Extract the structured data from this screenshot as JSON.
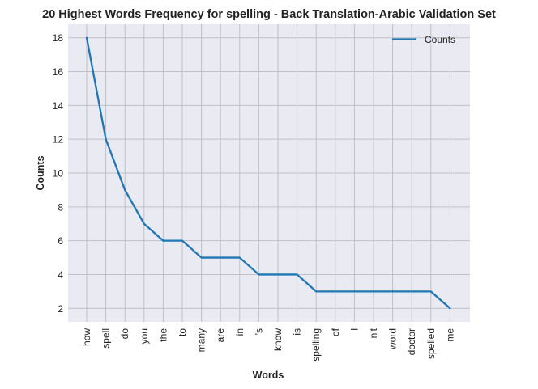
{
  "chart_data": {
    "type": "line",
    "title": "20 Highest Words Frequency for spelling - Back Translation-Arabic Validation Set",
    "xlabel": "Words",
    "ylabel": "Counts",
    "categories": [
      "how",
      "spell",
      "do",
      "you",
      "the",
      "to",
      "many",
      "are",
      "in",
      "'s",
      "know",
      "is",
      "spelling",
      "of",
      "i",
      "n't",
      "word",
      "doctor",
      "spelled",
      "me"
    ],
    "series": [
      {
        "name": "Counts",
        "values": [
          18,
          12,
          9,
          7,
          6,
          6,
          5,
          5,
          5,
          4,
          4,
          4,
          3,
          3,
          3,
          3,
          3,
          3,
          3,
          2
        ]
      }
    ],
    "yticks": [
      2,
      4,
      6,
      8,
      10,
      12,
      14,
      16,
      18
    ],
    "ylim": [
      1.2,
      18.8
    ],
    "grid": true,
    "legend": "top-right",
    "colors": {
      "line": "#1f77b4",
      "background": "#eaeaf2",
      "grid": "#c0c0c8"
    }
  }
}
